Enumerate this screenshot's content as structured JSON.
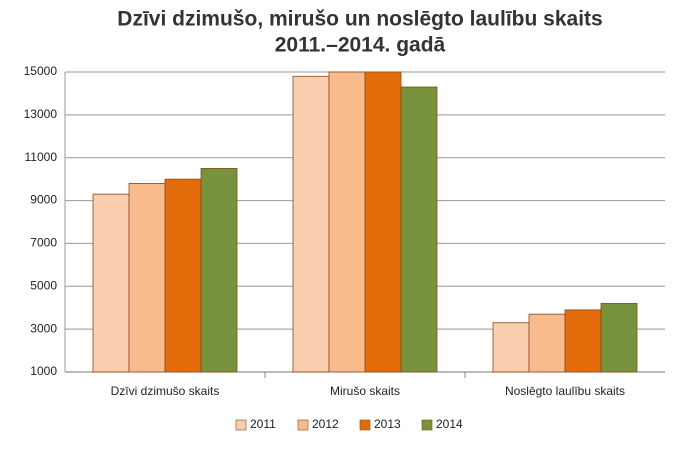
{
  "chart_data": {
    "type": "bar",
    "title": [
      "Dzīvi dzimušo, mirušo un noslēgto laulību skaits",
      "2011.–2014. gadā"
    ],
    "categories": [
      "Dzīvi dzimušo skaits",
      "Mirušo skaits",
      "Noslēgto laulību skaits"
    ],
    "series": [
      {
        "name": "2011",
        "color": "#f9cdae",
        "values": [
          9300,
          14800,
          3300
        ]
      },
      {
        "name": "2012",
        "color": "#f7bb8d",
        "values": [
          9800,
          15000,
          3700
        ]
      },
      {
        "name": "2013",
        "color": "#e36c0a",
        "values": [
          10000,
          15000,
          3900
        ]
      },
      {
        "name": "2014",
        "color": "#77933c",
        "values": [
          10500,
          14300,
          4200
        ]
      }
    ],
    "ylim": [
      1000,
      15000
    ],
    "yticks": [
      1000,
      3000,
      5000,
      7000,
      9000,
      11000,
      13000,
      15000
    ],
    "grid": true,
    "legend": "bottom"
  }
}
